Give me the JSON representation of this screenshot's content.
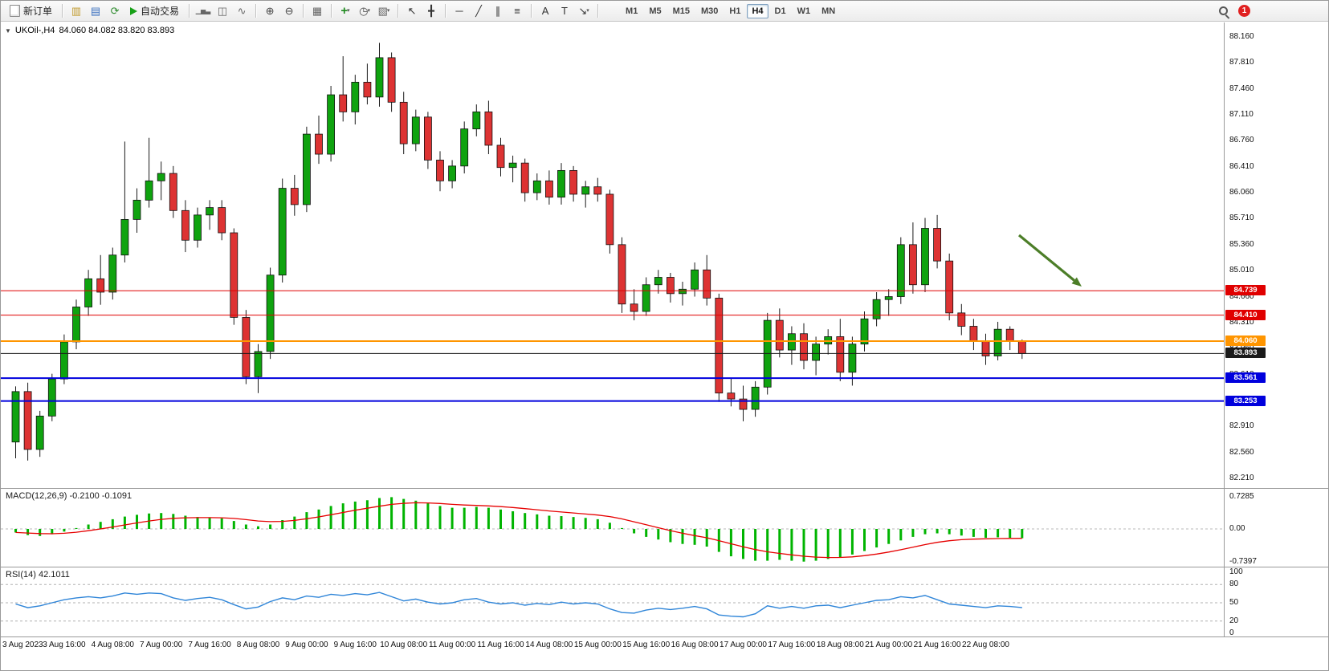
{
  "toolbar": {
    "new_order_label": "新订单",
    "auto_trading_label": "自动交易",
    "timeframes": [
      "M1",
      "M5",
      "M15",
      "M30",
      "H1",
      "H4",
      "D1",
      "W1",
      "MN"
    ],
    "active_timeframe": "H4",
    "notification_count": "1",
    "icon_groups": [
      [
        {
          "name": "market-watch-icon",
          "glyph": "▥",
          "color": "#c09a2e"
        },
        {
          "name": "data-window-icon",
          "glyph": "▤",
          "color": "#3a6fbf"
        },
        {
          "name": "refresh-icon",
          "glyph": "⟳",
          "color": "#2e8b2e"
        }
      ],
      [
        {
          "name": "bar-chart-icon",
          "glyph": "▁▅▃",
          "color": "#666",
          "small": true
        },
        {
          "name": "candlestick-chart-icon",
          "glyph": "◫",
          "color": "#666"
        },
        {
          "name": "line-chart-icon",
          "glyph": "∿",
          "color": "#666"
        }
      ],
      [
        {
          "name": "zoom-in-icon",
          "glyph": "⊕",
          "color": "#444"
        },
        {
          "name": "zoom-out-icon",
          "glyph": "⊖",
          "color": "#444"
        }
      ],
      [
        {
          "name": "tile-windows-icon",
          "glyph": "▦",
          "color": "#666"
        }
      ],
      [
        {
          "name": "indicators-icon",
          "glyph": "+",
          "color": "#1d8a1d",
          "caret": true
        },
        {
          "name": "periods-icon",
          "glyph": "◷",
          "color": "#444",
          "caret": true
        },
        {
          "name": "templates-icon",
          "glyph": "▧",
          "color": "#666",
          "caret": true
        }
      ],
      [
        {
          "name": "cursor-icon",
          "glyph": "↖",
          "color": "#333"
        },
        {
          "name": "crosshair-icon",
          "glyph": "╋",
          "color": "#333"
        }
      ],
      [
        {
          "name": "horizontal-line-icon",
          "glyph": "─",
          "color": "#333"
        },
        {
          "name": "trendline-icon",
          "glyph": "╱",
          "color": "#333"
        },
        {
          "name": "channel-icon",
          "glyph": "∥",
          "color": "#333"
        },
        {
          "name": "fibonacci-icon",
          "glyph": "≡",
          "color": "#333"
        }
      ],
      [
        {
          "name": "text-icon",
          "glyph": "A",
          "color": "#333"
        },
        {
          "name": "text-label-icon",
          "glyph": "T",
          "color": "#333"
        },
        {
          "name": "arrows-icon",
          "glyph": "↘",
          "color": "#333",
          "caret": true
        }
      ]
    ]
  },
  "chart_header": {
    "collapse_icon": "▼",
    "symbol_period": "UKOil-,H4",
    "ohlc": "84.060 84.082 83.820 83.893"
  },
  "chart_data": {
    "type": "candlestick",
    "symbol": "UKOil-",
    "timeframe": "H4",
    "bull_color": "#0fa30f",
    "bear_color": "#dd3333",
    "wick_color": "#1a1a1a",
    "price_axis_ticks": [
      "88.160",
      "87.810",
      "87.460",
      "87.110",
      "86.760",
      "86.410",
      "86.060",
      "85.710",
      "85.360",
      "85.010",
      "84.660",
      "84.310",
      "83.960",
      "83.610",
      "83.260",
      "82.910",
      "82.560",
      "82.210"
    ],
    "levels": [
      {
        "value": "84.739",
        "price": 84.739,
        "color": "#e00000",
        "width": 1,
        "name": "resistance-line-upper"
      },
      {
        "value": "84.410",
        "price": 84.41,
        "color": "#e00000",
        "width": 1,
        "name": "resistance-line-lower"
      },
      {
        "value": "84.060",
        "price": 84.06,
        "color": "#ff9500",
        "width": 2,
        "name": "pivot-line"
      },
      {
        "value": "83.893",
        "price": 83.893,
        "color": "#1a1a1a",
        "width": 1,
        "name": "current-price-line",
        "current": true
      },
      {
        "value": "83.561",
        "price": 83.561,
        "color": "#0000dd",
        "width": 2,
        "name": "support-line-upper"
      },
      {
        "value": "83.253",
        "price": 83.253,
        "color": "#0000dd",
        "width": 2,
        "name": "support-line-lower"
      }
    ],
    "time_labels": [
      "3 Aug 2023",
      "3 Aug 16:00",
      "4 Aug 08:00",
      "7 Aug 00:00",
      "7 Aug 16:00",
      "8 Aug 08:00",
      "9 Aug 00:00",
      "9 Aug 16:00",
      "10 Aug 08:00",
      "11 Aug 00:00",
      "11 Aug 16:00",
      "14 Aug 08:00",
      "15 Aug 00:00",
      "15 Aug 16:00",
      "16 Aug 08:00",
      "17 Aug 00:00",
      "17 Aug 16:00",
      "18 Aug 08:00",
      "21 Aug 00:00",
      "21 Aug 16:00",
      "22 Aug 08:00"
    ],
    "label_every_n_candles": 4,
    "candles": [
      [
        82.7,
        83.45,
        82.48,
        83.38
      ],
      [
        83.38,
        83.5,
        82.45,
        82.6
      ],
      [
        82.6,
        83.12,
        82.5,
        83.05
      ],
      [
        83.05,
        83.62,
        82.98,
        83.55
      ],
      [
        83.55,
        84.15,
        83.48,
        84.05
      ],
      [
        84.05,
        84.62,
        83.95,
        84.52
      ],
      [
        84.52,
        85.02,
        84.4,
        84.9
      ],
      [
        84.9,
        85.22,
        84.55,
        84.72
      ],
      [
        84.72,
        85.32,
        84.62,
        85.22
      ],
      [
        85.22,
        86.75,
        85.12,
        85.7
      ],
      [
        85.7,
        86.12,
        85.52,
        85.96
      ],
      [
        85.96,
        86.8,
        85.86,
        86.22
      ],
      [
        86.22,
        86.48,
        85.96,
        86.32
      ],
      [
        86.32,
        86.42,
        85.72,
        85.82
      ],
      [
        85.82,
        85.96,
        85.26,
        85.42
      ],
      [
        85.42,
        85.86,
        85.32,
        85.76
      ],
      [
        85.76,
        85.96,
        85.56,
        85.86
      ],
      [
        85.86,
        85.96,
        85.42,
        85.52
      ],
      [
        85.52,
        85.58,
        84.28,
        84.38
      ],
      [
        84.38,
        84.48,
        83.48,
        83.58
      ],
      [
        83.58,
        84.02,
        83.36,
        83.92
      ],
      [
        83.92,
        85.05,
        83.82,
        84.95
      ],
      [
        84.95,
        86.25,
        84.85,
        86.12
      ],
      [
        86.12,
        86.3,
        85.75,
        85.9
      ],
      [
        85.9,
        86.95,
        85.8,
        86.85
      ],
      [
        86.85,
        87.1,
        86.45,
        86.58
      ],
      [
        86.58,
        87.5,
        86.48,
        87.38
      ],
      [
        87.38,
        87.9,
        87.02,
        87.15
      ],
      [
        87.15,
        87.65,
        86.98,
        87.55
      ],
      [
        87.55,
        87.8,
        87.25,
        87.35
      ],
      [
        87.35,
        88.08,
        87.22,
        87.88
      ],
      [
        87.88,
        87.95,
        87.15,
        87.28
      ],
      [
        87.28,
        87.42,
        86.58,
        86.72
      ],
      [
        86.72,
        87.18,
        86.62,
        87.08
      ],
      [
        87.08,
        87.15,
        86.38,
        86.5
      ],
      [
        86.5,
        86.62,
        86.08,
        86.22
      ],
      [
        86.22,
        86.5,
        86.12,
        86.42
      ],
      [
        86.42,
        87.02,
        86.32,
        86.92
      ],
      [
        86.92,
        87.25,
        86.82,
        87.15
      ],
      [
        87.15,
        87.3,
        86.58,
        86.7
      ],
      [
        86.7,
        86.8,
        86.28,
        86.4
      ],
      [
        86.4,
        86.56,
        86.2,
        86.46
      ],
      [
        86.46,
        86.52,
        85.94,
        86.06
      ],
      [
        86.06,
        86.32,
        85.96,
        86.22
      ],
      [
        86.22,
        86.36,
        85.9,
        86.0
      ],
      [
        86.0,
        86.46,
        85.9,
        86.36
      ],
      [
        86.36,
        86.42,
        85.94,
        86.04
      ],
      [
        86.04,
        86.22,
        85.86,
        86.14
      ],
      [
        86.14,
        86.26,
        85.94,
        86.04
      ],
      [
        86.04,
        86.1,
        85.24,
        85.36
      ],
      [
        85.36,
        85.46,
        84.44,
        84.56
      ],
      [
        84.56,
        84.76,
        84.34,
        84.46
      ],
      [
        84.46,
        84.92,
        84.4,
        84.82
      ],
      [
        84.82,
        85.02,
        84.7,
        84.92
      ],
      [
        84.92,
        84.98,
        84.58,
        84.7
      ],
      [
        84.7,
        84.86,
        84.54,
        84.76
      ],
      [
        84.76,
        85.12,
        84.66,
        85.02
      ],
      [
        85.02,
        85.22,
        84.54,
        84.64
      ],
      [
        84.64,
        84.7,
        83.24,
        83.36
      ],
      [
        83.36,
        83.56,
        83.18,
        83.28
      ],
      [
        83.28,
        83.46,
        82.98,
        83.14
      ],
      [
        83.14,
        83.52,
        83.04,
        83.44
      ],
      [
        83.44,
        84.44,
        83.34,
        84.34
      ],
      [
        84.34,
        84.5,
        83.84,
        83.94
      ],
      [
        83.94,
        84.26,
        83.74,
        84.16
      ],
      [
        84.16,
        84.3,
        83.68,
        83.8
      ],
      [
        83.8,
        84.12,
        83.6,
        84.02
      ],
      [
        84.02,
        84.22,
        83.88,
        84.12
      ],
      [
        84.12,
        84.36,
        83.52,
        83.64
      ],
      [
        83.64,
        84.12,
        83.46,
        84.02
      ],
      [
        84.02,
        84.46,
        83.92,
        84.36
      ],
      [
        84.36,
        84.72,
        84.26,
        84.62
      ],
      [
        84.62,
        84.76,
        84.4,
        84.66
      ],
      [
        84.66,
        85.46,
        84.56,
        85.36
      ],
      [
        85.36,
        85.66,
        84.7,
        84.82
      ],
      [
        84.82,
        85.72,
        84.72,
        85.58
      ],
      [
        85.58,
        85.76,
        85.04,
        85.14
      ],
      [
        85.14,
        85.24,
        84.34,
        84.44
      ],
      [
        84.44,
        84.56,
        84.14,
        84.26
      ],
      [
        84.26,
        84.36,
        83.94,
        84.06
      ],
      [
        84.06,
        84.16,
        83.74,
        83.86
      ],
      [
        83.86,
        84.32,
        83.8,
        84.22
      ],
      [
        84.22,
        84.26,
        83.94,
        84.06
      ],
      [
        84.06,
        84.082,
        83.82,
        83.893
      ]
    ],
    "macd": {
      "name_label": "MACD(12,26,9)",
      "values_label": "-0.2100 -0.1091",
      "axis_ticks": [
        "0.7285",
        "0.00",
        "-0.7397"
      ],
      "histogram_color": "#00b400",
      "signal_color": "#e60000",
      "histogram": [
        -0.08,
        -0.14,
        -0.16,
        -0.12,
        -0.06,
        0.02,
        0.1,
        0.16,
        0.22,
        0.28,
        0.32,
        0.35,
        0.36,
        0.34,
        0.3,
        0.27,
        0.26,
        0.24,
        0.18,
        0.1,
        0.06,
        0.1,
        0.2,
        0.28,
        0.38,
        0.44,
        0.52,
        0.58,
        0.62,
        0.65,
        0.7,
        0.72,
        0.68,
        0.64,
        0.58,
        0.52,
        0.48,
        0.48,
        0.5,
        0.48,
        0.44,
        0.4,
        0.36,
        0.33,
        0.3,
        0.29,
        0.27,
        0.25,
        0.22,
        0.14,
        0.02,
        -0.1,
        -0.18,
        -0.24,
        -0.3,
        -0.34,
        -0.36,
        -0.4,
        -0.52,
        -0.62,
        -0.68,
        -0.72,
        -0.72,
        -0.7,
        -0.72,
        -0.74,
        -0.72,
        -0.68,
        -0.64,
        -0.58,
        -0.5,
        -0.42,
        -0.34,
        -0.26,
        -0.18,
        -0.12,
        -0.1,
        -0.12,
        -0.15,
        -0.18,
        -0.2,
        -0.19,
        -0.2,
        -0.21
      ]
    },
    "rsi": {
      "name_label": "RSI(14)",
      "value_label": "42.1011",
      "axis_ticks": [
        "100",
        "80",
        "50",
        "20",
        "0"
      ],
      "levels": [
        80,
        50,
        20
      ],
      "line_color": "#2f85d8",
      "values": [
        48,
        42,
        45,
        50,
        55,
        58,
        60,
        58,
        61,
        66,
        64,
        66,
        65,
        58,
        54,
        57,
        59,
        55,
        47,
        40,
        43,
        52,
        58,
        55,
        61,
        59,
        64,
        62,
        65,
        63,
        67,
        60,
        53,
        56,
        51,
        48,
        50,
        55,
        57,
        51,
        48,
        50,
        46,
        49,
        47,
        51,
        48,
        50,
        48,
        40,
        34,
        33,
        38,
        41,
        39,
        41,
        44,
        40,
        30,
        28,
        27,
        32,
        45,
        41,
        44,
        41,
        45,
        46,
        42,
        46,
        50,
        54,
        55,
        60,
        58,
        62,
        55,
        48,
        46,
        44,
        42,
        45,
        44,
        42.1
      ],
      "current_value": 42.1011
    },
    "annotation_arrow": {
      "direction": "down-right",
      "color": "#4c7e28",
      "from": [
        1268,
        265
      ],
      "to": [
        1346,
        329
      ]
    }
  }
}
